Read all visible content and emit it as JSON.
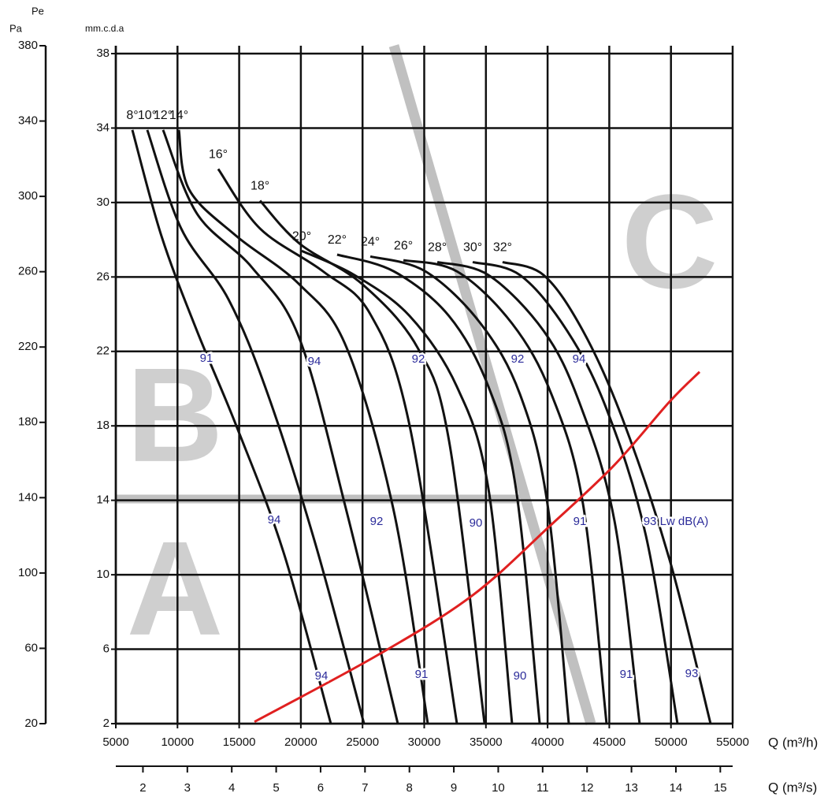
{
  "chart_data": {
    "type": "line",
    "x_label": "Q (m³/h)",
    "x2_label": "Q (m³/s)",
    "y_label": "mm.c.d.a",
    "y2_label": "Pa",
    "y2_sublabel": "Pe",
    "xlim": [
      5000,
      55000
    ],
    "xticks": [
      5000,
      10000,
      15000,
      20000,
      25000,
      30000,
      35000,
      40000,
      45000,
      50000,
      55000
    ],
    "x2lim": [
      1.389,
      15.278
    ],
    "x2ticks": [
      2,
      3,
      4,
      5,
      6,
      7,
      8,
      9,
      10,
      11,
      12,
      13,
      14,
      15
    ],
    "ylim": [
      2,
      38
    ],
    "yticks": [
      2,
      6,
      10,
      14,
      18,
      22,
      26,
      30,
      34,
      38
    ],
    "y2lim": [
      20,
      380
    ],
    "y2ticks": [
      20,
      60,
      100,
      140,
      180,
      220,
      260,
      300,
      340,
      380
    ],
    "grid": true,
    "series": [
      {
        "name": "8°",
        "color": "#111111",
        "x": [
          6340,
          8700,
          11580,
          14770,
          18600,
          22430
        ],
        "values": [
          33.9,
          28.2,
          23.1,
          18.0,
          11.2,
          2
        ]
      },
      {
        "name": "10°",
        "color": "#111111",
        "x": [
          7550,
          10300,
          14130,
          17320,
          21160,
          25120
        ],
        "values": [
          33.9,
          28.6,
          24.8,
          19.7,
          11.7,
          2
        ]
      },
      {
        "name": "12°",
        "color": "#111111",
        "x": [
          8830,
          11580,
          16050,
          19880,
          23710,
          27860
        ],
        "values": [
          33.9,
          29.4,
          26.5,
          22.7,
          13.4,
          2
        ]
      },
      {
        "name": "14°",
        "color": "#111111",
        "x": [
          10110,
          10940,
          14770,
          19880,
          23710,
          27540,
          30290
        ],
        "values": [
          33.9,
          30.7,
          28.2,
          25.6,
          22.2,
          13.4,
          2
        ]
      },
      {
        "name": "16°",
        "color": "#111111",
        "x": [
          13300,
          16690,
          21800,
          25630,
          28820,
          32650
        ],
        "values": [
          31.8,
          28.6,
          26.3,
          24.0,
          18.0,
          2
        ]
      },
      {
        "name": "18°",
        "color": "#111111",
        "x": [
          16690,
          19880,
          25000,
          29460,
          32010,
          34890
        ],
        "values": [
          30.1,
          27.8,
          25.6,
          22.2,
          17.2,
          2
        ]
      },
      {
        "name": "20°",
        "color": "#111111",
        "x": [
          20070,
          24350,
          28820,
          32650,
          35210,
          37120
        ],
        "values": [
          27.4,
          26.1,
          23.9,
          20.1,
          14.6,
          2
        ]
      },
      {
        "name": "22°",
        "color": "#111111",
        "x": [
          22940,
          27540,
          32010,
          35210,
          37440,
          39360
        ],
        "values": [
          27.2,
          26.3,
          23.9,
          20.1,
          14.6,
          2
        ]
      },
      {
        "name": "24°",
        "color": "#111111",
        "x": [
          25630,
          30100,
          34570,
          37760,
          39990,
          41720
        ],
        "values": [
          27.1,
          26.3,
          23.5,
          19.7,
          13.8,
          2
        ]
      },
      {
        "name": "26°",
        "color": "#111111",
        "x": [
          28310,
          32650,
          37120,
          40310,
          42870,
          44780
        ],
        "values": [
          26.9,
          26.3,
          23.5,
          19.7,
          13.8,
          2
        ]
      },
      {
        "name": "28°",
        "color": "#111111",
        "x": [
          31060,
          35210,
          39680,
          42550,
          45420,
          47460
        ],
        "values": [
          26.8,
          26.1,
          23.1,
          19.3,
          12.9,
          2
        ]
      },
      {
        "name": "30°",
        "color": "#111111",
        "x": [
          33930,
          37760,
          41590,
          44780,
          47970,
          50530
        ],
        "values": [
          26.8,
          26.1,
          23.1,
          18.9,
          12.1,
          2
        ]
      },
      {
        "name": "32°",
        "color": "#111111",
        "x": [
          36350,
          39680,
          42870,
          46060,
          49890,
          53210
        ],
        "values": [
          26.8,
          26.1,
          23.1,
          18.4,
          10.8,
          2
        ]
      }
    ],
    "system_curve": {
      "color": "#e02020",
      "x": [
        16240,
        26270,
        33930,
        40310,
        45420,
        49890,
        52320
      ],
      "values": [
        2.1,
        5.7,
        8.9,
        12.7,
        15.9,
        19.3,
        20.9
      ]
    },
    "regions": [
      "A",
      "B",
      "C"
    ],
    "annotations": [
      "91",
      "94",
      "92",
      "92",
      "94",
      "94",
      "92",
      "90",
      "91",
      "93 Lw dB(A)",
      "94",
      "91",
      "90",
      "91",
      "93"
    ]
  }
}
